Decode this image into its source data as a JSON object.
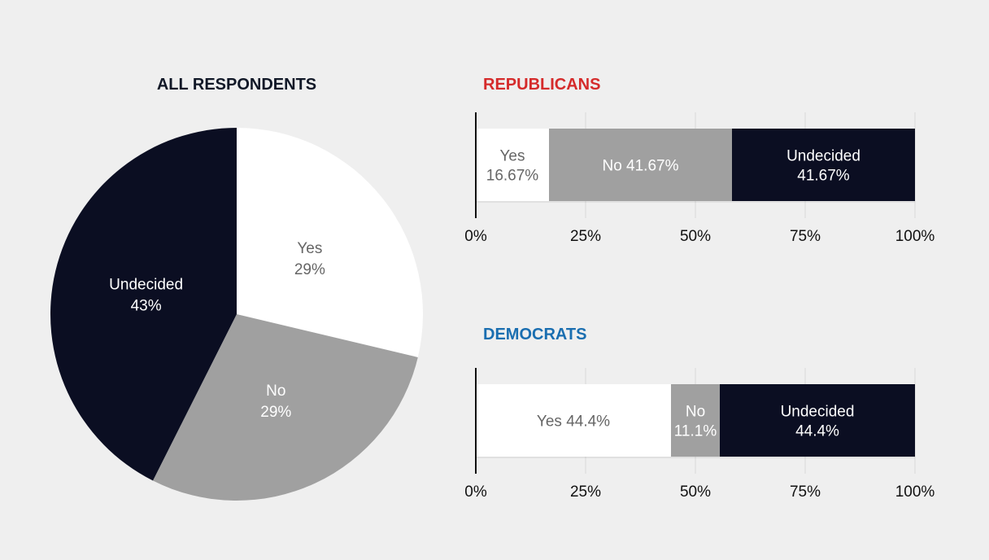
{
  "colors": {
    "background": "#efefef",
    "yes": "#ffffff",
    "no": "#a0a0a0",
    "undecided": "#0b0e22",
    "republicans_title": "#d52b2b",
    "democrats_title": "#1a6eb0",
    "all_title": "#111827",
    "label_on_light": "#666666",
    "label_on_dark": "#ffffff"
  },
  "chart_data": [
    {
      "type": "pie",
      "title": "ALL RESPONDENTS",
      "slices": [
        {
          "category": "Yes",
          "value": 29,
          "label": "29%",
          "color": "#ffffff",
          "text_color": "#666666"
        },
        {
          "category": "No",
          "value": 29,
          "label": "29%",
          "color": "#a0a0a0",
          "text_color": "#ffffff"
        },
        {
          "category": "Undecided",
          "value": 43,
          "label": "43%",
          "color": "#0b0e22",
          "text_color": "#ffffff"
        }
      ]
    },
    {
      "type": "bar",
      "stacked": true,
      "orientation": "horizontal",
      "title": "REPUBLICANS",
      "segments": [
        {
          "category": "Yes",
          "value": 16.67,
          "label": "16.67%",
          "color": "#ffffff",
          "text_color": "#666666",
          "two_line": true
        },
        {
          "category": "No",
          "value": 41.67,
          "label": "41.67%",
          "color": "#a0a0a0",
          "text_color": "#ffffff",
          "two_line": false
        },
        {
          "category": "Undecided",
          "value": 41.67,
          "label": "41.67%",
          "color": "#0b0e22",
          "text_color": "#ffffff",
          "two_line": true
        }
      ],
      "xlim": [
        0,
        100
      ],
      "xticks": [
        "0%",
        "25%",
        "50%",
        "75%",
        "100%"
      ],
      "grid": true
    },
    {
      "type": "bar",
      "stacked": true,
      "orientation": "horizontal",
      "title": "DEMOCRATS",
      "segments": [
        {
          "category": "Yes",
          "value": 44.4,
          "label": "44.4%",
          "color": "#ffffff",
          "text_color": "#666666",
          "two_line": false
        },
        {
          "category": "No",
          "value": 11.1,
          "label": "11.1%",
          "color": "#a0a0a0",
          "text_color": "#ffffff",
          "two_line": true
        },
        {
          "category": "Undecided",
          "value": 44.4,
          "label": "44.4%",
          "color": "#0b0e22",
          "text_color": "#ffffff",
          "two_line": true
        }
      ],
      "xlim": [
        0,
        100
      ],
      "xticks": [
        "0%",
        "25%",
        "50%",
        "75%",
        "100%"
      ],
      "grid": true
    }
  ]
}
